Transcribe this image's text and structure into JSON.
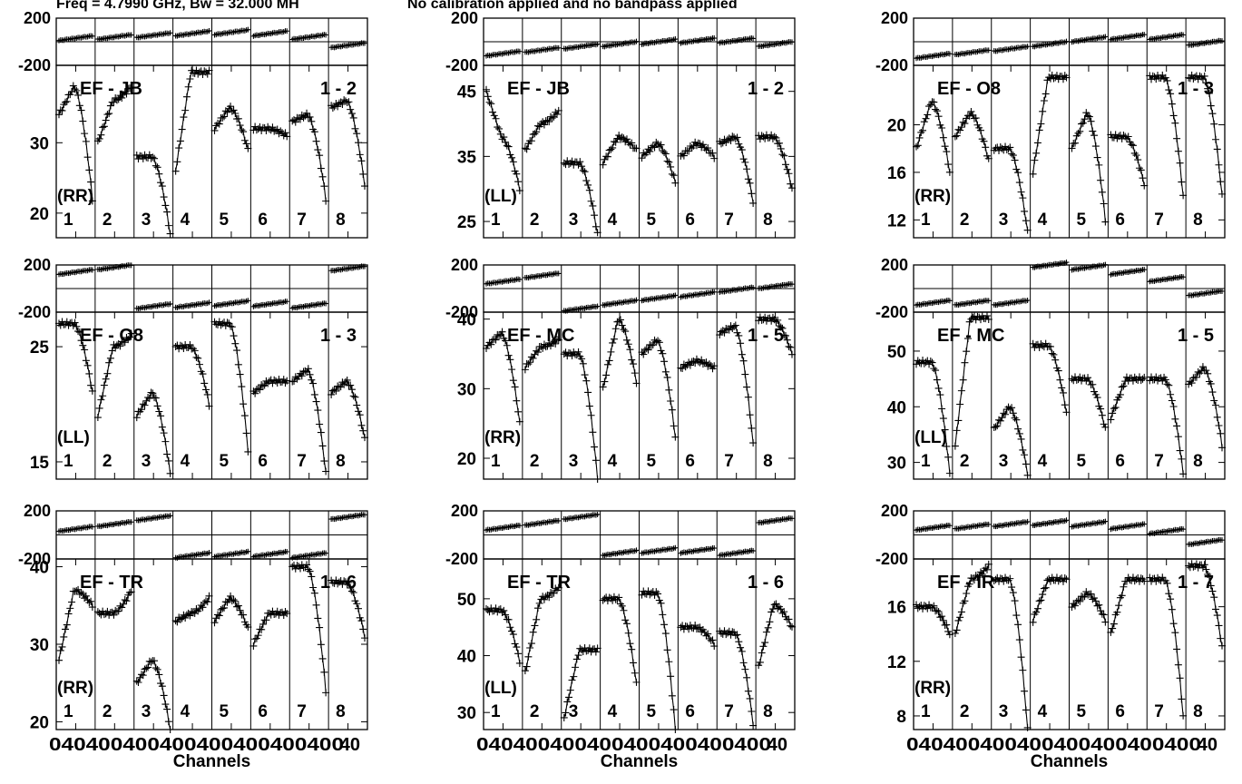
{
  "header": {
    "freq_text": "Freq = 4.7990 GHz, Bw = 32.000 MH",
    "note_text": "No calibration applied and no bandpass applied"
  },
  "chart_data": [
    {
      "type": "line",
      "baseline": "EF - JB",
      "pair": "1 - 2",
      "pol": "(RR)",
      "phase_ylim": [
        -200,
        200
      ],
      "phase_ticks": [
        200,
        -200
      ],
      "amp_ylim": [
        16.5,
        41
      ],
      "amp_ticks": [
        30,
        20
      ],
      "phase_seg_offsets": [
        30,
        40,
        55,
        70,
        80,
        70,
        40,
        -30
      ],
      "amp_segments": [
        {
          "start": 34,
          "peak": 38,
          "end": 22
        },
        {
          "start": 30,
          "peak": 36,
          "end": 38
        },
        {
          "start": 28,
          "peak": 28,
          "end": 17
        },
        {
          "start": 26,
          "peak": 40,
          "end": 40
        },
        {
          "start": 32,
          "peak": 35,
          "end": 29
        },
        {
          "start": 32,
          "peak": 32,
          "end": 31
        },
        {
          "start": 33,
          "peak": 34,
          "end": 22
        },
        {
          "start": 35,
          "peak": 36,
          "end": 24
        }
      ]
    },
    {
      "type": "line",
      "baseline": "EF - JB",
      "pair": "1 - 2",
      "pol": "(LL)",
      "phase_ylim": [
        -200,
        200
      ],
      "phase_ticks": [
        200,
        -200
      ],
      "amp_ylim": [
        22.5,
        49
      ],
      "amp_ticks": [
        45,
        35,
        25
      ],
      "phase_seg_offsets": [
        -100,
        -70,
        -40,
        -20,
        0,
        10,
        10,
        -20
      ],
      "amp_segments": [
        {
          "start": 45,
          "peak": 38,
          "end": 30
        },
        {
          "start": 36,
          "peak": 40,
          "end": 42
        },
        {
          "start": 34,
          "peak": 34,
          "end": 23
        },
        {
          "start": 34,
          "peak": 38,
          "end": 36
        },
        {
          "start": 35,
          "peak": 37,
          "end": 31
        },
        {
          "start": 35,
          "peak": 37,
          "end": 35
        },
        {
          "start": 37,
          "peak": 38,
          "end": 28
        },
        {
          "start": 38,
          "peak": 38,
          "end": 30
        }
      ]
    },
    {
      "type": "line",
      "baseline": "EF - O8",
      "pair": "1 - 3",
      "pol": "(RR)",
      "phase_ylim": [
        -200,
        200
      ],
      "phase_ticks": [
        200,
        -200
      ],
      "amp_ylim": [
        10.5,
        25
      ],
      "amp_ticks": [
        20,
        16,
        12
      ],
      "phase_seg_offsets": [
        -120,
        -90,
        -60,
        -20,
        20,
        40,
        40,
        -10
      ],
      "amp_segments": [
        {
          "start": 18,
          "peak": 22,
          "end": 16
        },
        {
          "start": 19,
          "peak": 21,
          "end": 17
        },
        {
          "start": 18,
          "peak": 18,
          "end": 11
        },
        {
          "start": 16,
          "peak": 24,
          "end": 24
        },
        {
          "start": 18,
          "peak": 21,
          "end": 12
        },
        {
          "start": 19,
          "peak": 19,
          "end": 15
        },
        {
          "start": 24,
          "peak": 24,
          "end": 14
        },
        {
          "start": 24,
          "peak": 24,
          "end": 14
        }
      ]
    },
    {
      "type": "line",
      "baseline": "EF - O8",
      "pair": "1 - 3",
      "pol": "(LL)",
      "phase_ylim": [
        -200,
        200
      ],
      "phase_ticks": [
        200,
        -200
      ],
      "amp_ylim": [
        13.5,
        28
      ],
      "amp_ticks": [
        25,
        15
      ],
      "phase_seg_offsets": [
        140,
        180,
        -150,
        -140,
        -125,
        -130,
        -145,
        170
      ],
      "amp_segments": [
        {
          "start": 27,
          "peak": 27,
          "end": 21
        },
        {
          "start": 19,
          "peak": 25,
          "end": 26
        },
        {
          "start": 19,
          "peak": 21,
          "end": 14
        },
        {
          "start": 25,
          "peak": 25,
          "end": 20
        },
        {
          "start": 27,
          "peak": 27,
          "end": 16
        },
        {
          "start": 21,
          "peak": 22,
          "end": 22
        },
        {
          "start": 22,
          "peak": 23,
          "end": 14
        },
        {
          "start": 21,
          "peak": 22,
          "end": 17
        }
      ]
    },
    {
      "type": "line",
      "baseline": "EF - MC",
      "pair": "1 - 5",
      "pol": "(RR)",
      "phase_ylim": [
        -200,
        200
      ],
      "phase_ticks": [
        200,
        -200
      ],
      "amp_ylim": [
        17,
        41
      ],
      "amp_ticks": [
        40,
        30,
        20
      ],
      "phase_seg_offsets": [
        60,
        110,
        -170,
        -120,
        -80,
        -50,
        -10,
        20
      ],
      "amp_segments": [
        {
          "start": 36,
          "peak": 38,
          "end": 25
        },
        {
          "start": 33,
          "peak": 36,
          "end": 37
        },
        {
          "start": 35,
          "peak": 35,
          "end": 17
        },
        {
          "start": 30,
          "peak": 40,
          "end": 31
        },
        {
          "start": 35,
          "peak": 37,
          "end": 23
        },
        {
          "start": 33,
          "peak": 34,
          "end": 33
        },
        {
          "start": 38,
          "peak": 39,
          "end": 22
        },
        {
          "start": 40,
          "peak": 40,
          "end": 35
        }
      ]
    },
    {
      "type": "line",
      "baseline": "EF - MC",
      "pair": "1 - 5",
      "pol": "(LL)",
      "phase_ylim": [
        -200,
        200
      ],
      "phase_ticks": [
        200,
        -200
      ],
      "amp_ylim": [
        27,
        57
      ],
      "amp_ticks": [
        50,
        40,
        30
      ],
      "phase_seg_offsets": [
        -120,
        -120,
        -120,
        200,
        180,
        140,
        80,
        -40
      ],
      "amp_segments": [
        {
          "start": 48,
          "peak": 48,
          "end": 28
        },
        {
          "start": 33,
          "peak": 56,
          "end": 56
        },
        {
          "start": 36,
          "peak": 40,
          "end": 28
        },
        {
          "start": 51,
          "peak": 51,
          "end": 39
        },
        {
          "start": 45,
          "peak": 45,
          "end": 36
        },
        {
          "start": 38,
          "peak": 45,
          "end": 45
        },
        {
          "start": 45,
          "peak": 45,
          "end": 28
        },
        {
          "start": 44,
          "peak": 47,
          "end": 33
        }
      ]
    },
    {
      "type": "line",
      "baseline": "EF - TR",
      "pair": "1 - 6",
      "pol": "(RR)",
      "phase_ylim": [
        -200,
        200
      ],
      "phase_ticks": [
        200,
        -200
      ],
      "amp_ylim": [
        19,
        41
      ],
      "amp_ticks": [
        40,
        30,
        20
      ],
      "phase_seg_offsets": [
        50,
        90,
        140,
        -170,
        -160,
        -160,
        -170,
        150
      ],
      "amp_segments": [
        {
          "start": 28,
          "peak": 37,
          "end": 35
        },
        {
          "start": 34,
          "peak": 34,
          "end": 37
        },
        {
          "start": 25,
          "peak": 28,
          "end": 19
        },
        {
          "start": 33,
          "peak": 34,
          "end": 36
        },
        {
          "start": 33,
          "peak": 36,
          "end": 32
        },
        {
          "start": 30,
          "peak": 34,
          "end": 34
        },
        {
          "start": 40,
          "peak": 40,
          "end": 24
        },
        {
          "start": 38,
          "peak": 38,
          "end": 31
        }
      ]
    },
    {
      "type": "line",
      "baseline": "EF - TR",
      "pair": "1 - 6",
      "pol": "(LL)",
      "phase_ylim": [
        -200,
        200
      ],
      "phase_ticks": [
        200,
        -200
      ],
      "amp_ylim": [
        27,
        57
      ],
      "amp_ticks": [
        50,
        40,
        30
      ],
      "phase_seg_offsets": [
        60,
        100,
        150,
        -150,
        -130,
        -130,
        -150,
        120
      ],
      "amp_segments": [
        {
          "start": 48,
          "peak": 48,
          "end": 39
        },
        {
          "start": 37,
          "peak": 50,
          "end": 52
        },
        {
          "start": 29,
          "peak": 41,
          "end": 41
        },
        {
          "start": 50,
          "peak": 50,
          "end": 35
        },
        {
          "start": 51,
          "peak": 51,
          "end": 27
        },
        {
          "start": 45,
          "peak": 45,
          "end": 42
        },
        {
          "start": 44,
          "peak": 44,
          "end": 28
        },
        {
          "start": 38,
          "peak": 49,
          "end": 45
        }
      ]
    },
    {
      "type": "line",
      "baseline": "EF - IR",
      "pair": "1 - 7",
      "pol": "(RR)",
      "phase_ylim": [
        -200,
        200
      ],
      "phase_ticks": [
        200,
        -200
      ],
      "amp_ylim": [
        7,
        19.5
      ],
      "amp_ticks": [
        16,
        12,
        8
      ],
      "phase_seg_offsets": [
        60,
        70,
        90,
        100,
        90,
        70,
        30,
        -60
      ],
      "amp_segments": [
        {
          "start": 16,
          "peak": 16,
          "end": 14
        },
        {
          "start": 14,
          "peak": 18,
          "end": 19
        },
        {
          "start": 18,
          "peak": 18,
          "end": 7
        },
        {
          "start": 15,
          "peak": 18,
          "end": 18
        },
        {
          "start": 16,
          "peak": 17,
          "end": 15
        },
        {
          "start": 14,
          "peak": 18,
          "end": 18
        },
        {
          "start": 18,
          "peak": 18,
          "end": 8
        },
        {
          "start": 19,
          "peak": 19,
          "end": 13
        }
      ]
    }
  ],
  "channel_labels": [
    "1",
    "2",
    "3",
    "4",
    "5",
    "6",
    "7",
    "8"
  ],
  "x_tick_text": "040400400400400400400400",
  "x_tick_last": "40",
  "x_title": "Channels"
}
